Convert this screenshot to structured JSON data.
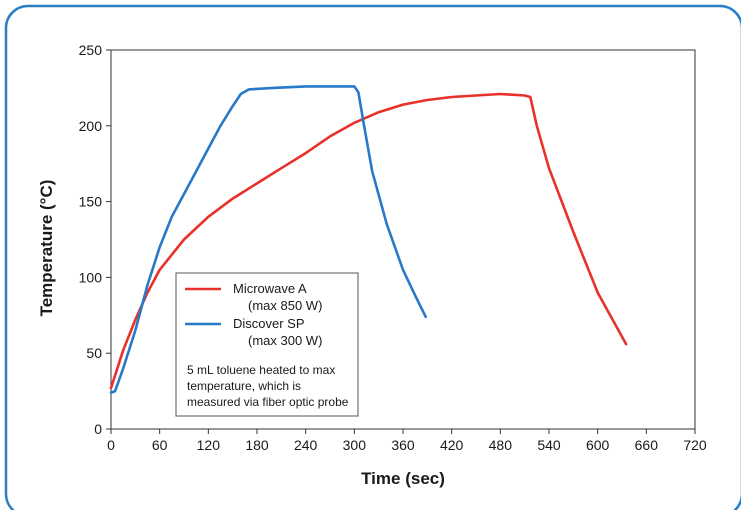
{
  "chart_data": {
    "type": "line",
    "title": "",
    "xlabel": "Time (sec)",
    "ylabel": "Temperature (°C)",
    "xlim": [
      0,
      720
    ],
    "ylim": [
      0,
      250
    ],
    "x_ticks": [
      0,
      60,
      120,
      180,
      240,
      300,
      360,
      420,
      480,
      540,
      600,
      660,
      720
    ],
    "y_ticks": [
      0,
      50,
      100,
      150,
      200,
      250
    ],
    "grid": false,
    "legend": {
      "placement": "lower-left",
      "entries": [
        {
          "name": "Microwave A",
          "detail": "(max 850 W)"
        },
        {
          "name": "Discover SP",
          "detail": "(max 300 W)"
        }
      ]
    },
    "note_lines": [
      "5 mL toluene heated to max",
      "temperature, which is",
      "measured via fiber optic probe"
    ],
    "series": [
      {
        "name": "Microwave A",
        "color": "#e8312a",
        "points": [
          [
            0,
            27
          ],
          [
            15,
            52
          ],
          [
            30,
            72
          ],
          [
            45,
            90
          ],
          [
            60,
            105
          ],
          [
            90,
            125
          ],
          [
            120,
            140
          ],
          [
            150,
            152
          ],
          [
            180,
            162
          ],
          [
            210,
            172
          ],
          [
            240,
            182
          ],
          [
            270,
            193
          ],
          [
            300,
            202
          ],
          [
            330,
            209
          ],
          [
            360,
            214
          ],
          [
            390,
            217
          ],
          [
            420,
            219
          ],
          [
            450,
            220
          ],
          [
            480,
            221
          ],
          [
            510,
            220
          ],
          [
            517,
            219
          ],
          [
            525,
            200
          ],
          [
            540,
            172
          ],
          [
            570,
            130
          ],
          [
            600,
            90
          ],
          [
            635,
            56
          ]
        ]
      },
      {
        "name": "Discover SP",
        "color": "#2879c8",
        "points": [
          [
            0,
            24
          ],
          [
            5,
            25
          ],
          [
            15,
            40
          ],
          [
            30,
            65
          ],
          [
            45,
            95
          ],
          [
            60,
            120
          ],
          [
            75,
            140
          ],
          [
            90,
            155
          ],
          [
            105,
            170
          ],
          [
            120,
            185
          ],
          [
            135,
            200
          ],
          [
            150,
            213
          ],
          [
            160,
            221
          ],
          [
            170,
            224
          ],
          [
            200,
            225
          ],
          [
            240,
            226
          ],
          [
            280,
            226
          ],
          [
            300,
            226
          ],
          [
            305,
            222
          ],
          [
            312,
            200
          ],
          [
            322,
            170
          ],
          [
            340,
            135
          ],
          [
            360,
            105
          ],
          [
            375,
            88
          ],
          [
            388,
            74
          ]
        ]
      }
    ]
  },
  "colors": {
    "frame_border": "#2a7ec4",
    "axis": "#333333"
  }
}
